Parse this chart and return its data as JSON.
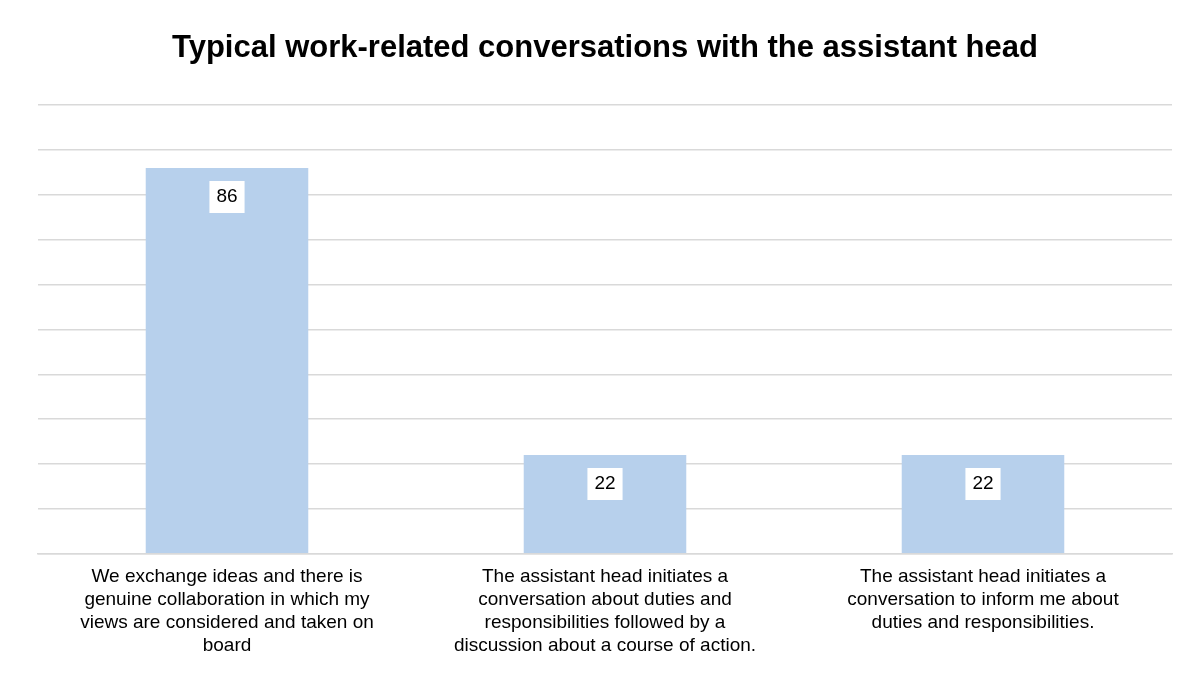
{
  "chart_data": {
    "type": "bar",
    "title": "Typical work-related conversations with the assistant head",
    "categories": [
      "We exchange ideas and there is genuine collaboration in which my views are considered and taken on board",
      "The assistant head initiates a conversation about duties and responsibilities followed by a discussion about a course of action.",
      "The assistant head initiates a conversation to inform me about duties and responsibilities."
    ],
    "values": [
      86,
      22,
      22
    ],
    "color": "#b7d0ec",
    "ylim": [
      0,
      100
    ],
    "tick_labels": "x",
    "grid": "y",
    "data_labels": true,
    "legend": false
  }
}
